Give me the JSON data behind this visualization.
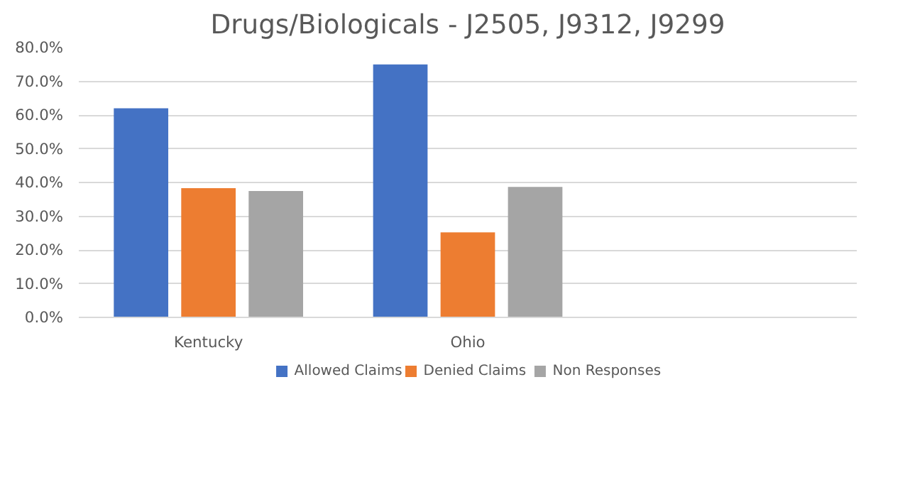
{
  "chart_data": {
    "type": "bar",
    "title": "Drugs/Biologicals - J2505, J9312, J9299",
    "categories": [
      "Kentucky",
      "Ohio",
      null
    ],
    "series": [
      {
        "name": "Allowed Claims",
        "color": "#4472c4",
        "values": [
          62.0,
          75.0,
          null
        ]
      },
      {
        "name": "Denied Claims",
        "color": "#ed7d31",
        "values": [
          38.3,
          25.2,
          null
        ]
      },
      {
        "name": "Non Responses",
        "color": "#a5a5a5",
        "values": [
          37.5,
          38.7,
          null
        ]
      }
    ],
    "ylim": [
      0,
      80
    ],
    "yticks": [
      {
        "value": 0,
        "label": "0.0%"
      },
      {
        "value": 10,
        "label": "10.0%"
      },
      {
        "value": 20,
        "label": "20.0%"
      },
      {
        "value": 30,
        "label": "30.0%"
      },
      {
        "value": 40,
        "label": "40.0%"
      },
      {
        "value": 50,
        "label": "50.0%"
      },
      {
        "value": 60,
        "label": "60.0%"
      },
      {
        "value": 70,
        "label": "70.0%"
      },
      {
        "value": 80,
        "label": "80.0%"
      }
    ],
    "grid": "y",
    "legend": "bottom"
  }
}
